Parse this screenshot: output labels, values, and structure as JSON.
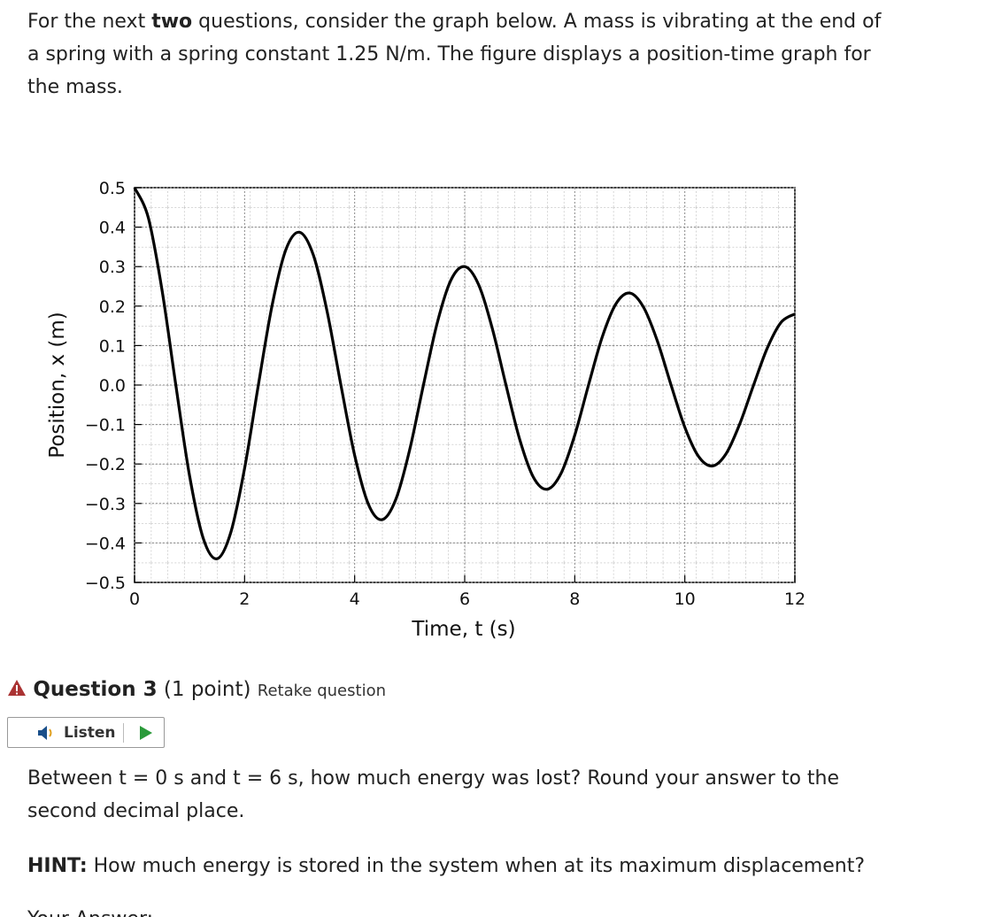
{
  "intro": {
    "before": "For the next ",
    "bold": "two",
    "after": " questions, consider the graph below. A mass is vibrating at the end of a spring with a spring constant 1.25 N/m. The figure displays a position-time graph for the mass."
  },
  "chart_data": {
    "type": "line",
    "x_label": "Time, t (s)",
    "y_label": "Position, x (m)",
    "x": [
      0,
      0.25,
      0.5,
      0.75,
      1,
      1.25,
      1.5,
      1.75,
      2,
      2.25,
      2.5,
      2.75,
      3,
      3.25,
      3.5,
      3.75,
      4,
      4.25,
      4.5,
      4.75,
      5,
      5.25,
      5.5,
      5.75,
      6,
      6.25,
      6.5,
      6.75,
      7,
      7.25,
      7.5,
      7.75,
      8,
      8.25,
      8.5,
      8.75,
      9,
      9.25,
      9.5,
      9.75,
      10,
      10.25,
      10.5,
      10.75,
      11,
      11.25,
      11.5,
      11.75,
      12
    ],
    "series": [
      {
        "color": "#000000",
        "values": [
          0.5,
          0.424,
          0.24,
          0,
          -0.23,
          -0.389,
          -0.44,
          -0.373,
          -0.211,
          0,
          0.202,
          0.343,
          0.387,
          0.329,
          0.186,
          0,
          -0.178,
          -0.302,
          -0.341,
          -0.289,
          -0.164,
          0,
          0.157,
          0.266,
          0.3,
          0.255,
          0.144,
          0,
          -0.138,
          -0.234,
          -0.264,
          -0.224,
          -0.127,
          0,
          0.122,
          0.206,
          0.233,
          0.197,
          0.112,
          0,
          -0.107,
          -0.181,
          -0.205,
          -0.174,
          -0.098,
          0,
          0.094,
          0.159,
          0.18
        ]
      }
    ],
    "xlim": [
      0,
      12
    ],
    "ylim": [
      -0.5,
      0.5
    ],
    "xticks": [
      0,
      2,
      4,
      6,
      8,
      10,
      12
    ],
    "yticks": [
      {
        "value": -0.5,
        "label": "−0.5"
      },
      {
        "value": -0.4,
        "label": "−0.4"
      },
      {
        "value": -0.3,
        "label": "−0.3"
      },
      {
        "value": -0.2,
        "label": "−0.2"
      },
      {
        "value": -0.1,
        "label": "−0.1"
      },
      {
        "value": 0,
        "label": "0.0"
      },
      0.1,
      0.2,
      0.3,
      0.4,
      0.5
    ],
    "grid": true
  },
  "question": {
    "title": "Question 3",
    "points": "(1 point)",
    "retake": "Retake question",
    "listen": "Listen",
    "text": "Between t = 0 s and t = 6 s, how much energy was lost? Round your answer to the second decimal place.",
    "hint_label": "HINT:",
    "hint": " How much energy is stored in the system when at its maximum displacement?",
    "answer_label": "Your Answer:"
  }
}
